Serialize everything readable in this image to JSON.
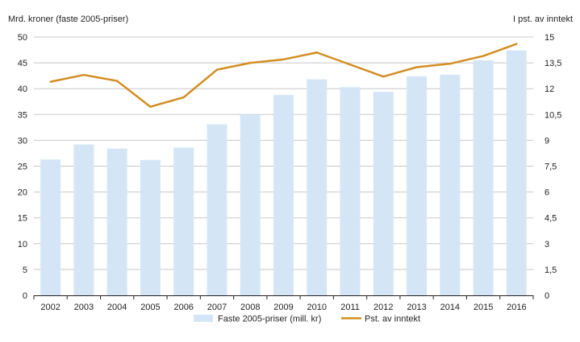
{
  "chart_data": {
    "type": "bar+line",
    "categories": [
      "2002",
      "2003",
      "2004",
      "2005",
      "2006",
      "2007",
      "2008",
      "2009",
      "2010",
      "2011",
      "2012",
      "2013",
      "2014",
      "2015",
      "2016"
    ],
    "series": [
      {
        "name": "Faste 2005-priser (mill. kr)",
        "kind": "bar",
        "axis": "left",
        "color": "#d4e6f6",
        "values": [
          26.3,
          29.2,
          28.4,
          26.2,
          28.6,
          33.1,
          35.0,
          38.8,
          41.8,
          40.3,
          39.4,
          42.4,
          42.7,
          45.5,
          47.4
        ]
      },
      {
        "name": "Pst. av inntekt",
        "kind": "line",
        "axis": "right",
        "color": "#d38d22",
        "values": [
          12.4,
          12.8,
          12.45,
          10.95,
          11.5,
          13.1,
          13.5,
          13.7,
          14.1,
          13.4,
          12.7,
          13.25,
          13.45,
          13.9,
          14.6
        ]
      }
    ],
    "y_left": {
      "title": "Mrd. kroner (faste 2005-priser)",
      "ylim": [
        0,
        50
      ],
      "ticks": [
        "0",
        "5",
        "10",
        "15",
        "20",
        "25",
        "30",
        "35",
        "40",
        "45",
        "50"
      ]
    },
    "y_right": {
      "title": "I pst. av inntekt",
      "ylim": [
        0,
        15
      ],
      "ticks": [
        "0",
        "1,5",
        "3",
        "4,5",
        "6",
        "7,5",
        "9",
        "10,5",
        "12",
        "13,5",
        "15"
      ]
    },
    "grid": true,
    "legend": [
      "Faste 2005-priser (mill. kr)",
      "Pst. av inntekt"
    ],
    "legend_position": "bottom"
  }
}
